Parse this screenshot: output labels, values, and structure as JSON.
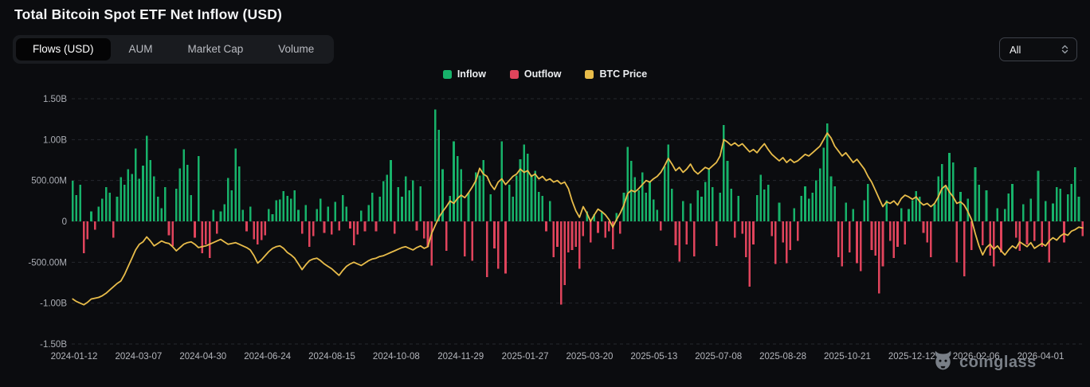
{
  "header": {
    "title": "Total Bitcoin Spot ETF Net Inflow (USD)"
  },
  "controls": {
    "tabs": [
      {
        "label": "Flows (USD)",
        "active": true
      },
      {
        "label": "AUM",
        "active": false
      },
      {
        "label": "Market Cap",
        "active": false
      },
      {
        "label": "Volume",
        "active": false
      }
    ],
    "range_select": {
      "value": "All"
    }
  },
  "watermark": {
    "text": "coinglass"
  },
  "chart_data": {
    "type": "bar+line",
    "title": "Total Bitcoin Spot ETF Net Inflow (USD)",
    "legend_position": "top-center",
    "grid": "dashed-horizontal",
    "legend": [
      {
        "label": "Inflow",
        "color": "#17b26a"
      },
      {
        "label": "Outflow",
        "color": "#e0445c"
      },
      {
        "label": "BTC Price",
        "color": "#e8bc4a"
      }
    ],
    "background_color": "#0b0c0f",
    "axis_label_color": "#abaeb5",
    "grid_color": "#2f3238",
    "y_axis": {
      "ticks": [
        "1.50B",
        "1.00B",
        "500.00M",
        "0",
        "-500.00M",
        "-1.00B",
        "-1.50B"
      ],
      "values_b": [
        1.5,
        1.0,
        0.5,
        0,
        -0.5,
        -1.0,
        -1.5
      ],
      "ylim_b": [
        -1.5,
        1.5
      ]
    },
    "x_axis": {
      "ticks": [
        "2024-01-12",
        "2024-03-07",
        "2024-04-30",
        "2024-06-24",
        "2024-08-15",
        "2024-10-08",
        "2024-11-29",
        "2025-01-27",
        "2025-03-20",
        "2025-05-13",
        "2025-07-08",
        "2025-08-28",
        "2025-10-21",
        "2025-12-12",
        "2026-02-06",
        "2026-04-01"
      ]
    },
    "sampling": "net ETF flow per ~3-day step, millions USD; positive = Inflow (green), negative = Outflow (red)",
    "series": [
      {
        "name": "net_flow_musd",
        "units": "USD millions",
        "values": [
          497,
          320,
          450,
          -390,
          -220,
          120,
          -100,
          180,
          280,
          420,
          350,
          -200,
          300,
          540,
          450,
          640,
          580,
          890,
          520,
          680,
          1045,
          750,
          550,
          300,
          160,
          420,
          -170,
          -300,
          400,
          650,
          880,
          690,
          320,
          -200,
          800,
          -390,
          -280,
          -450,
          140,
          -150,
          120,
          210,
          530,
          380,
          890,
          670,
          140,
          -120,
          180,
          -220,
          -280,
          -230,
          -170,
          150,
          90,
          260,
          270,
          370,
          310,
          280,
          380,
          140,
          -150,
          200,
          -310,
          -180,
          150,
          280,
          -140,
          180,
          -160,
          240,
          -110,
          320,
          180,
          -90,
          -290,
          -160,
          130,
          -120,
          200,
          350,
          -120,
          300,
          490,
          570,
          750,
          -150,
          420,
          300,
          550,
          380,
          500,
          -110,
          430,
          -210,
          -310,
          -540,
          1370,
          1120,
          640,
          -360,
          310,
          980,
          800,
          640,
          -430,
          350,
          -480,
          600,
          560,
          750,
          -680,
          330,
          -330,
          -580,
          980,
          -640,
          450,
          300,
          560,
          760,
          940,
          830,
          570,
          620,
          360,
          310,
          -120,
          250,
          -440,
          -310,
          -1020,
          -780,
          -380,
          -350,
          -310,
          -580,
          -180,
          120,
          -260,
          90,
          -140,
          110,
          -200,
          -120,
          -340,
          100,
          -150,
          350,
          910,
          740,
          540,
          380,
          600,
          350,
          480,
          270,
          140,
          -110,
          670,
          940,
          400,
          -290,
          -490,
          250,
          -280,
          220,
          -430,
          380,
          300,
          480,
          640,
          420,
          -300,
          350,
          1180,
          740,
          400,
          -200,
          310,
          -150,
          -440,
          -800,
          -280,
          320,
          570,
          390,
          450,
          -180,
          -520,
          230,
          -260,
          -510,
          -350,
          160,
          -240,
          310,
          430,
          280,
          350,
          500,
          650,
          900,
          1200,
          550,
          430,
          -440,
          -550,
          230,
          -380,
          150,
          -510,
          -610,
          260,
          460,
          -350,
          -420,
          -880,
          -550,
          260,
          -240,
          -450,
          -310,
          160,
          -280,
          150,
          260,
          370,
          300,
          -140,
          -260,
          -440,
          210,
          550,
          700,
          430,
          840,
          720,
          -500,
          360,
          -670,
          280,
          -350,
          660,
          450,
          -290,
          380,
          -420,
          -550,
          160,
          -380,
          150,
          340,
          460,
          -200,
          -360,
          210,
          -280,
          280,
          -240,
          620,
          -310,
          250,
          -500,
          220,
          420,
          400,
          -260,
          330,
          460,
          660,
          300,
          -180
        ]
      },
      {
        "name": "btc_price_line",
        "units": "plotted position on left axis, billions (price axis not shown)",
        "values": [
          -0.95,
          -0.98,
          -1.0,
          -1.02,
          -0.99,
          -0.95,
          -0.94,
          -0.93,
          -0.91,
          -0.88,
          -0.84,
          -0.8,
          -0.76,
          -0.73,
          -0.65,
          -0.55,
          -0.45,
          -0.35,
          -0.28,
          -0.25,
          -0.19,
          -0.24,
          -0.3,
          -0.27,
          -0.24,
          -0.26,
          -0.27,
          -0.31,
          -0.36,
          -0.32,
          -0.28,
          -0.26,
          -0.25,
          -0.28,
          -0.32,
          -0.31,
          -0.3,
          -0.28,
          -0.26,
          -0.24,
          -0.22,
          -0.25,
          -0.28,
          -0.27,
          -0.26,
          -0.28,
          -0.3,
          -0.32,
          -0.35,
          -0.42,
          -0.51,
          -0.47,
          -0.42,
          -0.37,
          -0.33,
          -0.31,
          -0.3,
          -0.33,
          -0.38,
          -0.41,
          -0.45,
          -0.52,
          -0.59,
          -0.53,
          -0.48,
          -0.46,
          -0.45,
          -0.48,
          -0.52,
          -0.55,
          -0.58,
          -0.62,
          -0.66,
          -0.6,
          -0.55,
          -0.52,
          -0.5,
          -0.52,
          -0.54,
          -0.51,
          -0.48,
          -0.46,
          -0.45,
          -0.43,
          -0.42,
          -0.4,
          -0.38,
          -0.36,
          -0.34,
          -0.32,
          -0.31,
          -0.33,
          -0.35,
          -0.32,
          -0.3,
          -0.33,
          -0.31,
          -0.15,
          -0.05,
          0.05,
          0.12,
          0.18,
          0.25,
          0.22,
          0.28,
          0.32,
          0.29,
          0.35,
          0.42,
          0.5,
          0.65,
          0.58,
          0.55,
          0.45,
          0.39,
          0.48,
          0.52,
          0.45,
          0.5,
          0.55,
          0.58,
          0.64,
          0.6,
          0.62,
          0.55,
          0.58,
          0.52,
          0.55,
          0.5,
          0.52,
          0.48,
          0.5,
          0.46,
          0.48,
          0.4,
          0.25,
          0.13,
          0.05,
          0.18,
          0.1,
          0.0,
          0.08,
          0.15,
          0.12,
          0.08,
          0.02,
          -0.07,
          0.02,
          0.1,
          0.2,
          0.34,
          0.38,
          0.36,
          0.4,
          0.45,
          0.5,
          0.48,
          0.52,
          0.55,
          0.6,
          0.68,
          0.77,
          0.7,
          0.62,
          0.66,
          0.6,
          0.64,
          0.7,
          0.62,
          0.58,
          0.62,
          0.66,
          0.64,
          0.68,
          0.72,
          0.8,
          1.0,
          0.97,
          0.93,
          0.96,
          0.92,
          0.95,
          0.9,
          0.85,
          0.88,
          0.84,
          0.9,
          0.95,
          0.88,
          0.82,
          0.78,
          0.74,
          0.78,
          0.72,
          0.76,
          0.72,
          0.74,
          0.78,
          0.82,
          0.8,
          0.84,
          0.88,
          0.92,
          1.0,
          1.08,
          1.02,
          0.92,
          0.86,
          0.8,
          0.84,
          0.78,
          0.72,
          0.76,
          0.7,
          0.64,
          0.55,
          0.48,
          0.38,
          0.28,
          0.18,
          0.24,
          0.22,
          0.25,
          0.2,
          0.28,
          0.32,
          0.3,
          0.27,
          0.3,
          0.24,
          0.2,
          0.22,
          0.18,
          0.22,
          0.3,
          0.4,
          0.44,
          0.36,
          0.3,
          0.22,
          0.24,
          0.2,
          0.12,
          0.02,
          -0.15,
          -0.3,
          -0.41,
          -0.32,
          -0.28,
          -0.34,
          -0.3,
          -0.36,
          -0.41,
          -0.35,
          -0.3,
          -0.33,
          -0.25,
          -0.28,
          -0.31,
          -0.26,
          -0.33,
          -0.3,
          -0.27,
          -0.3,
          -0.24,
          -0.2,
          -0.23,
          -0.18,
          -0.15,
          -0.17,
          -0.12,
          -0.1,
          -0.07,
          -0.08
        ]
      }
    ]
  }
}
